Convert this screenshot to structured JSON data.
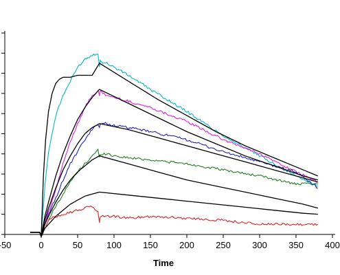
{
  "chart_data": {
    "type": "line",
    "title": "",
    "xlabel": "Time",
    "ylabel": "",
    "xlim": [
      -50,
      400
    ],
    "ylim": [
      0,
      10
    ],
    "x_ticks": [
      -50,
      0,
      50,
      100,
      150,
      200,
      250,
      300,
      350,
      400
    ],
    "x_tick_labels": [
      "-50",
      "0",
      "50",
      "100",
      "150",
      "200",
      "250",
      "300",
      "350",
      "400"
    ],
    "y_tick_count": 11,
    "grid": false,
    "legend": "none",
    "series": [
      {
        "color": "#00b8c8",
        "kind": "measured",
        "x": [
          -15,
          -2,
          0,
          5,
          10,
          20,
          30,
          40,
          50,
          60,
          70,
          78,
          80,
          81,
          90,
          100,
          120,
          150,
          200,
          250,
          300,
          350,
          380
        ],
        "y": [
          0,
          0,
          -0.2,
          2.3,
          4.0,
          5.8,
          6.8,
          7.5,
          8.2,
          8.6,
          8.8,
          8.9,
          8.2,
          8.5,
          8.4,
          8.2,
          7.8,
          7.1,
          6.0,
          4.8,
          3.8,
          2.8,
          2.3
        ]
      },
      {
        "color": "#e020e0",
        "kind": "measured",
        "x": [
          -15,
          -2,
          0,
          10,
          20,
          30,
          40,
          50,
          60,
          70,
          78,
          80,
          81,
          90,
          100,
          120,
          150,
          200,
          250,
          300,
          350,
          380
        ],
        "y": [
          0,
          0,
          -0.2,
          1.0,
          2.1,
          3.4,
          4.5,
          5.4,
          6.2,
          6.8,
          7.0,
          6.8,
          7.0,
          6.8,
          6.7,
          6.5,
          6.2,
          5.5,
          4.6,
          3.9,
          3.0,
          2.5
        ]
      },
      {
        "color": "#2020c0",
        "kind": "measured",
        "x": [
          -15,
          -2,
          0,
          10,
          20,
          30,
          40,
          50,
          60,
          70,
          78,
          80,
          81,
          90,
          100,
          120,
          150,
          200,
          250,
          300,
          350,
          380
        ],
        "y": [
          0,
          0,
          -0.2,
          0.9,
          1.7,
          2.6,
          3.4,
          4.0,
          4.6,
          5.1,
          5.4,
          5.2,
          5.4,
          5.4,
          5.3,
          5.2,
          5.0,
          4.6,
          4.0,
          3.5,
          3.0,
          2.2
        ]
      },
      {
        "color": "#208020",
        "kind": "measured",
        "x": [
          -15,
          -2,
          0,
          10,
          20,
          30,
          40,
          50,
          60,
          70,
          78,
          80,
          81,
          90,
          100,
          120,
          150,
          200,
          250,
          300,
          350,
          380
        ],
        "y": [
          0,
          0,
          -0.2,
          0.6,
          1.3,
          1.9,
          2.5,
          3.0,
          3.4,
          3.8,
          4.1,
          3.7,
          3.9,
          3.9,
          3.8,
          3.7,
          3.6,
          3.4,
          3.1,
          2.8,
          2.4,
          2.4
        ]
      },
      {
        "color": "#e02020",
        "kind": "measured",
        "x": [
          -15,
          -2,
          0,
          10,
          20,
          30,
          40,
          50,
          60,
          70,
          78,
          80,
          81,
          90,
          100,
          120,
          150,
          200,
          250,
          300,
          350,
          380
        ],
        "y": [
          0,
          0,
          -0.2,
          0.6,
          0.8,
          0.9,
          1.0,
          1.1,
          1.2,
          1.3,
          1.0,
          0.5,
          0.8,
          0.8,
          0.8,
          0.7,
          0.8,
          0.7,
          0.6,
          0.4,
          0.4,
          0.4
        ]
      },
      {
        "color": "#000000",
        "kind": "fit",
        "x": [
          -15,
          -2,
          0,
          3,
          6,
          10,
          15,
          20,
          25,
          30,
          40,
          50,
          60,
          70,
          80,
          120,
          160,
          200,
          240,
          280,
          320,
          360,
          380
        ],
        "y": [
          0,
          0,
          -0.2,
          2.8,
          4.6,
          6.0,
          6.9,
          7.4,
          7.6,
          7.7,
          7.7,
          7.8,
          7.8,
          7.8,
          8.4,
          7.5,
          6.6,
          5.8,
          5.0,
          4.3,
          3.7,
          3.1,
          2.8
        ]
      },
      {
        "color": "#000000",
        "kind": "fit",
        "x": [
          -15,
          -2,
          0,
          5,
          10,
          20,
          30,
          40,
          50,
          60,
          70,
          80,
          120,
          160,
          200,
          240,
          280,
          320,
          360,
          380
        ],
        "y": [
          0,
          0,
          -0.2,
          0.8,
          1.5,
          2.8,
          3.9,
          4.8,
          5.6,
          6.2,
          6.7,
          7.1,
          6.4,
          5.7,
          5.0,
          4.4,
          3.8,
          3.3,
          2.8,
          2.6
        ]
      },
      {
        "color": "#000000",
        "kind": "fit",
        "x": [
          -15,
          -2,
          0,
          5,
          10,
          20,
          30,
          40,
          50,
          60,
          70,
          80,
          120,
          160,
          200,
          240,
          280,
          320,
          360,
          380
        ],
        "y": [
          0,
          0,
          -0.2,
          0.6,
          1.2,
          2.2,
          3.1,
          3.8,
          4.4,
          4.9,
          5.2,
          5.4,
          5.1,
          4.7,
          4.3,
          3.9,
          3.5,
          3.1,
          2.7,
          2.5
        ]
      },
      {
        "color": "#000000",
        "kind": "fit",
        "x": [
          -15,
          -2,
          0,
          5,
          10,
          20,
          30,
          40,
          50,
          60,
          70,
          80,
          120,
          160,
          200,
          240,
          280,
          320,
          360,
          380
        ],
        "y": [
          0,
          0,
          -0.2,
          0.4,
          0.8,
          1.5,
          2.1,
          2.6,
          3.0,
          3.3,
          3.6,
          3.8,
          3.4,
          3.0,
          2.6,
          2.3,
          2.0,
          1.7,
          1.4,
          1.2
        ]
      },
      {
        "color": "#000000",
        "kind": "fit",
        "x": [
          -15,
          -2,
          0,
          5,
          10,
          20,
          30,
          40,
          50,
          60,
          70,
          80,
          120,
          160,
          200,
          240,
          280,
          320,
          360,
          380
        ],
        "y": [
          0,
          0,
          -0.2,
          0.2,
          0.4,
          0.8,
          1.1,
          1.4,
          1.6,
          1.8,
          1.9,
          2.0,
          1.85,
          1.7,
          1.55,
          1.4,
          1.25,
          1.1,
          0.95,
          0.9
        ]
      }
    ]
  }
}
